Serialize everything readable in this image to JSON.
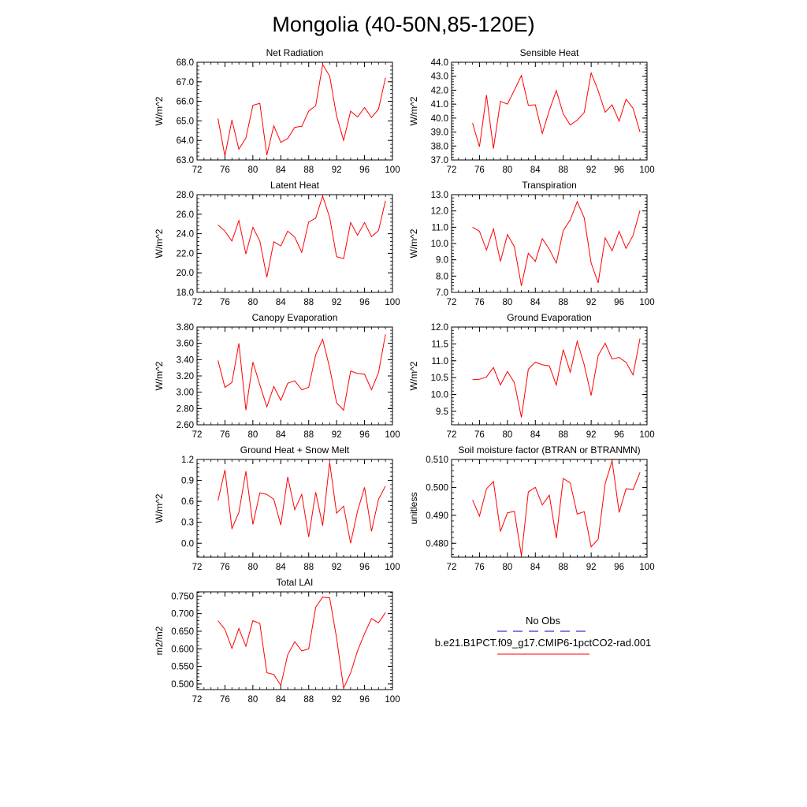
{
  "title": "Mongolia (40-50N,85-120E)",
  "colors": {
    "model": "#ff0000",
    "obs": "#0000cc",
    "axis": "#000000"
  },
  "legend": {
    "obs_label": "No Obs",
    "model_label": "b.e21.B1PCT.f09_g17.CMIP6-1pctCO2-rad.001"
  },
  "chart_data": [
    {
      "type": "line",
      "title": "Net Radiation",
      "ylabel": "W/m^2",
      "xlim": [
        72,
        100
      ],
      "ylim": [
        63.0,
        68.0
      ],
      "xticks": [
        72,
        76,
        80,
        84,
        88,
        92,
        96,
        100
      ],
      "yticks": [
        63.0,
        64.0,
        65.0,
        66.0,
        67.0,
        68.0
      ],
      "ytick_labels": [
        "63.0",
        "64.0",
        "65.0",
        "66.0",
        "67.0",
        "68.0"
      ],
      "x": [
        75,
        76,
        77,
        78,
        79,
        80,
        81,
        82,
        83,
        84,
        85,
        86,
        87,
        88,
        89,
        90,
        91,
        92,
        93,
        94,
        95,
        96,
        97,
        98,
        99
      ],
      "series": [
        {
          "values": [
            65.12,
            63.2,
            65.05,
            63.55,
            64.12,
            65.8,
            65.9,
            63.25,
            64.75,
            63.9,
            64.1,
            64.67,
            64.72,
            65.5,
            65.78,
            67.88,
            67.3,
            65.25,
            64.0,
            65.5,
            65.2,
            65.68,
            65.17,
            65.6,
            67.2
          ]
        }
      ]
    },
    {
      "type": "line",
      "title": "Sensible Heat",
      "ylabel": "W/m^2",
      "xlim": [
        72,
        100
      ],
      "ylim": [
        37.0,
        44.0
      ],
      "xticks": [
        72,
        76,
        80,
        84,
        88,
        92,
        96,
        100
      ],
      "yticks": [
        37.0,
        38.0,
        39.0,
        40.0,
        41.0,
        42.0,
        43.0,
        44.0
      ],
      "ytick_labels": [
        "37.0",
        "38.0",
        "39.0",
        "40.0",
        "41.0",
        "42.0",
        "43.0",
        "44.0"
      ],
      "x": [
        75,
        76,
        77,
        78,
        79,
        80,
        81,
        82,
        83,
        84,
        85,
        86,
        87,
        88,
        89,
        90,
        91,
        92,
        93,
        94,
        95,
        96,
        97,
        98,
        99
      ],
      "series": [
        {
          "values": [
            39.65,
            37.95,
            41.65,
            37.82,
            41.2,
            41.0,
            42.0,
            43.05,
            40.92,
            40.95,
            38.9,
            40.55,
            41.97,
            40.3,
            39.5,
            39.85,
            40.4,
            43.23,
            41.97,
            40.42,
            40.95,
            39.78,
            41.35,
            40.7,
            39.0
          ]
        }
      ]
    },
    {
      "type": "line",
      "title": "Latent Heat",
      "ylabel": "W/m^2",
      "xlim": [
        72,
        100
      ],
      "ylim": [
        18.0,
        28.0
      ],
      "xticks": [
        72,
        76,
        80,
        84,
        88,
        92,
        96,
        100
      ],
      "yticks": [
        18.0,
        20.0,
        22.0,
        24.0,
        26.0,
        28.0
      ],
      "ytick_labels": [
        "18.0",
        "20.0",
        "22.0",
        "24.0",
        "26.0",
        "28.0"
      ],
      "x": [
        75,
        76,
        77,
        78,
        79,
        80,
        81,
        82,
        83,
        84,
        85,
        86,
        87,
        88,
        89,
        90,
        91,
        92,
        93,
        94,
        95,
        96,
        97,
        98,
        99
      ],
      "series": [
        {
          "values": [
            24.9,
            24.27,
            23.25,
            25.35,
            21.93,
            24.65,
            23.25,
            19.55,
            23.18,
            22.75,
            24.27,
            23.65,
            22.1,
            25.2,
            25.6,
            27.85,
            25.67,
            21.65,
            21.45,
            25.15,
            23.85,
            25.15,
            23.7,
            24.32,
            27.38
          ]
        }
      ]
    },
    {
      "type": "line",
      "title": "Transpiration",
      "ylabel": "W/m^2",
      "xlim": [
        72,
        100
      ],
      "ylim": [
        7.0,
        13.0
      ],
      "xticks": [
        72,
        76,
        80,
        84,
        88,
        92,
        96,
        100
      ],
      "yticks": [
        7.0,
        8.0,
        9.0,
        10.0,
        11.0,
        12.0,
        13.0
      ],
      "ytick_labels": [
        "7.0",
        "8.0",
        "9.0",
        "10.0",
        "11.0",
        "12.0",
        "13.0"
      ],
      "x": [
        75,
        76,
        77,
        78,
        79,
        80,
        81,
        82,
        83,
        84,
        85,
        86,
        87,
        88,
        89,
        90,
        91,
        92,
        93,
        94,
        95,
        96,
        97,
        98,
        99
      ],
      "series": [
        {
          "values": [
            11.0,
            10.75,
            9.6,
            10.9,
            8.9,
            10.55,
            9.8,
            7.4,
            9.4,
            8.9,
            10.3,
            9.65,
            8.8,
            10.8,
            11.45,
            12.57,
            11.58,
            8.8,
            7.58,
            10.35,
            9.55,
            10.75,
            9.7,
            10.5,
            12.03
          ]
        }
      ]
    },
    {
      "type": "line",
      "title": "Canopy Evaporation",
      "ylabel": "W/m^2",
      "xlim": [
        72,
        100
      ],
      "ylim": [
        2.6,
        3.8
      ],
      "xticks": [
        72,
        76,
        80,
        84,
        88,
        92,
        96,
        100
      ],
      "yticks": [
        2.6,
        2.8,
        3.0,
        3.2,
        3.4,
        3.6,
        3.8
      ],
      "ytick_labels": [
        "2.60",
        "2.80",
        "3.00",
        "3.20",
        "3.40",
        "3.60",
        "3.80"
      ],
      "x": [
        75,
        76,
        77,
        78,
        79,
        80,
        81,
        82,
        83,
        84,
        85,
        86,
        87,
        88,
        89,
        90,
        91,
        92,
        93,
        94,
        95,
        96,
        97,
        98,
        99
      ],
      "series": [
        {
          "values": [
            3.39,
            3.06,
            3.12,
            3.6,
            2.78,
            3.37,
            3.09,
            2.82,
            3.07,
            2.9,
            3.11,
            3.14,
            3.03,
            3.06,
            3.46,
            3.65,
            3.3,
            2.87,
            2.78,
            3.26,
            3.23,
            3.22,
            3.03,
            3.24,
            3.71
          ]
        }
      ]
    },
    {
      "type": "line",
      "title": "Ground Evaporation",
      "ylabel": "W/m^2",
      "xlim": [
        72,
        100
      ],
      "ylim": [
        9.1,
        12.0
      ],
      "xticks": [
        72,
        76,
        80,
        84,
        88,
        92,
        96,
        100
      ],
      "yticks": [
        9.5,
        10.0,
        10.5,
        11.0,
        11.5,
        12.0
      ],
      "ytick_labels": [
        "9.5",
        "10.0",
        "10.5",
        "11.0",
        "11.5",
        "12.0"
      ],
      "x": [
        75,
        76,
        77,
        78,
        79,
        80,
        81,
        82,
        83,
        84,
        85,
        86,
        87,
        88,
        89,
        90,
        91,
        92,
        93,
        94,
        95,
        96,
        97,
        98,
        99
      ],
      "series": [
        {
          "values": [
            10.44,
            10.45,
            10.52,
            10.8,
            10.28,
            10.68,
            10.35,
            9.32,
            10.75,
            10.96,
            10.88,
            10.85,
            10.28,
            11.33,
            10.66,
            11.58,
            10.88,
            9.97,
            11.15,
            11.52,
            11.05,
            11.1,
            10.95,
            10.58,
            11.66
          ]
        }
      ]
    },
    {
      "type": "line",
      "title": "Ground Heat + Snow Melt",
      "ylabel": "W/m^2",
      "xlim": [
        72,
        100
      ],
      "ylim": [
        -0.2,
        1.2
      ],
      "xticks": [
        72,
        76,
        80,
        84,
        88,
        92,
        96,
        100
      ],
      "yticks": [
        0.0,
        0.3,
        0.6,
        0.9,
        1.2
      ],
      "ytick_labels": [
        "0.0",
        "0.3",
        "0.6",
        "0.9",
        "1.2"
      ],
      "x": [
        75,
        76,
        77,
        78,
        79,
        80,
        81,
        82,
        83,
        84,
        85,
        86,
        87,
        88,
        89,
        90,
        91,
        92,
        93,
        94,
        95,
        96,
        97,
        98,
        99
      ],
      "series": [
        {
          "values": [
            0.61,
            1.05,
            0.21,
            0.44,
            1.03,
            0.27,
            0.72,
            0.7,
            0.63,
            0.26,
            0.95,
            0.48,
            0.7,
            0.09,
            0.73,
            0.25,
            1.16,
            0.43,
            0.53,
            0.0,
            0.46,
            0.8,
            0.17,
            0.63,
            0.82
          ]
        }
      ]
    },
    {
      "type": "line",
      "title": "Soil moisture factor (BTRAN or BTRANMN)",
      "ylabel": "unitless",
      "xlim": [
        72,
        100
      ],
      "ylim": [
        0.475,
        0.51
      ],
      "xticks": [
        72,
        76,
        80,
        84,
        88,
        92,
        96,
        100
      ],
      "yticks": [
        0.48,
        0.49,
        0.5,
        0.51
      ],
      "ytick_labels": [
        "0.480",
        "0.490",
        "0.500",
        "0.510"
      ],
      "x": [
        75,
        76,
        77,
        78,
        79,
        80,
        81,
        82,
        83,
        84,
        85,
        86,
        87,
        88,
        89,
        90,
        91,
        92,
        93,
        94,
        95,
        96,
        97,
        98,
        99
      ],
      "series": [
        {
          "values": [
            0.4955,
            0.4897,
            0.4995,
            0.5021,
            0.4842,
            0.4909,
            0.4914,
            0.4755,
            0.4984,
            0.5,
            0.4937,
            0.4972,
            0.4818,
            0.5032,
            0.5016,
            0.4904,
            0.4913,
            0.4787,
            0.4814,
            0.5013,
            0.5095,
            0.491,
            0.4995,
            0.4992,
            0.5054
          ]
        }
      ]
    },
    {
      "type": "line",
      "title": "Total LAI",
      "ylabel": "m2/m2",
      "xlim": [
        72,
        100
      ],
      "ylim": [
        0.484,
        0.762
      ],
      "xticks": [
        72,
        76,
        80,
        84,
        88,
        92,
        96,
        100
      ],
      "yticks": [
        0.5,
        0.55,
        0.6,
        0.65,
        0.7,
        0.75
      ],
      "ytick_labels": [
        "0.500",
        "0.550",
        "0.600",
        "0.650",
        "0.700",
        "0.750"
      ],
      "x": [
        75,
        76,
        77,
        78,
        79,
        80,
        81,
        82,
        83,
        84,
        85,
        86,
        87,
        88,
        89,
        90,
        91,
        92,
        93,
        94,
        95,
        96,
        97,
        98,
        99
      ],
      "series": [
        {
          "values": [
            0.68,
            0.655,
            0.601,
            0.658,
            0.607,
            0.68,
            0.672,
            0.532,
            0.527,
            0.496,
            0.583,
            0.62,
            0.594,
            0.6,
            0.718,
            0.747,
            0.745,
            0.631,
            0.488,
            0.531,
            0.594,
            0.643,
            0.686,
            0.674,
            0.703
          ]
        }
      ]
    }
  ]
}
